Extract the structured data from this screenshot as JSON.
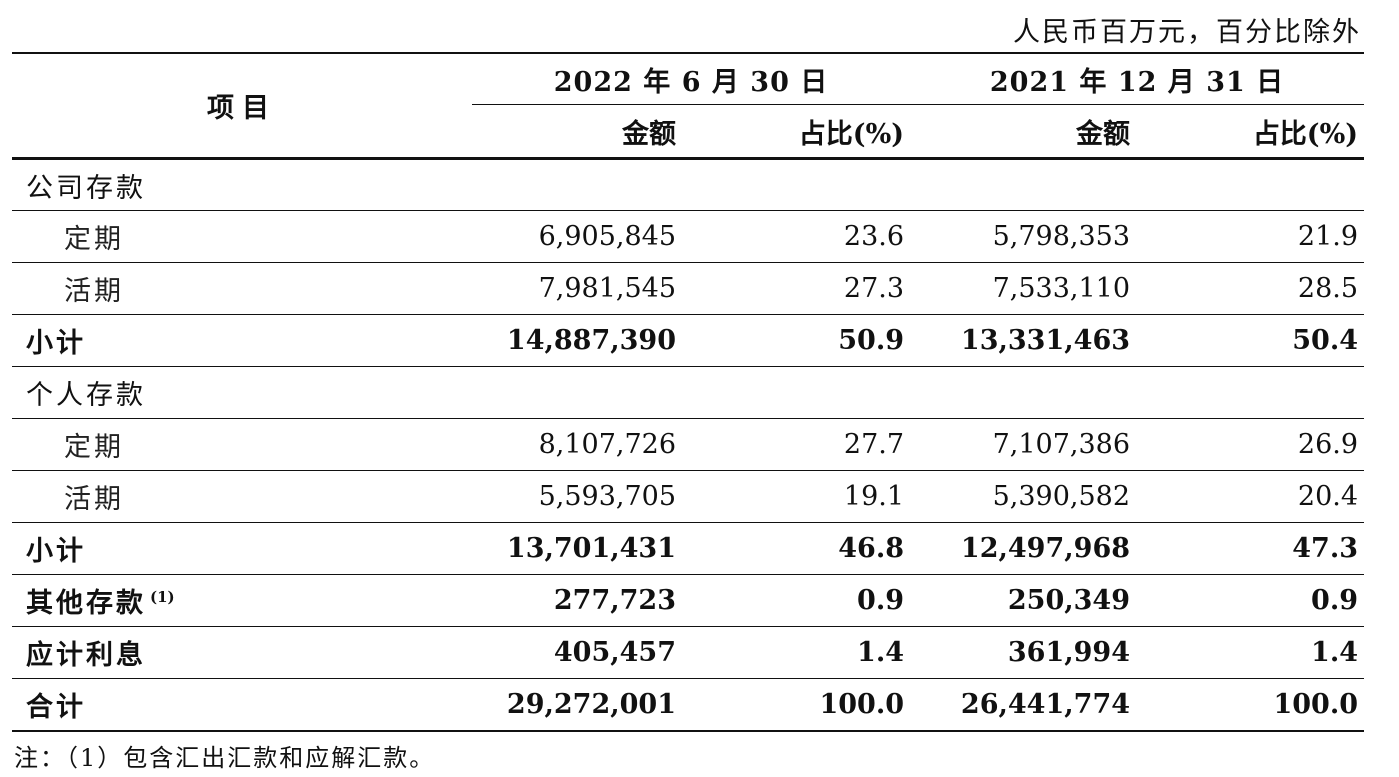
{
  "unit_note": "人民币百万元，百分比除外",
  "header": {
    "item": "项目",
    "periods": [
      {
        "label": "2022 年 6 月 30 日",
        "amount": "金额",
        "ratio": "占比(%)"
      },
      {
        "label": "2021 年 12 月 31 日",
        "amount": "金额",
        "ratio": "占比(%)"
      }
    ]
  },
  "rows": [
    {
      "label": "公司存款",
      "cells": [
        "",
        "",
        "",
        ""
      ]
    },
    {
      "label": "定期",
      "cells": [
        "6,905,845",
        "23.6",
        "5,798,353",
        "21.9"
      ]
    },
    {
      "label": "活期",
      "cells": [
        "7,981,545",
        "27.3",
        "7,533,110",
        "28.5"
      ]
    },
    {
      "label": "小计",
      "cells": [
        "14,887,390",
        "50.9",
        "13,331,463",
        "50.4"
      ]
    },
    {
      "label": "个人存款",
      "cells": [
        "",
        "",
        "",
        ""
      ]
    },
    {
      "label": "定期",
      "cells": [
        "8,107,726",
        "27.7",
        "7,107,386",
        "26.9"
      ]
    },
    {
      "label": "活期",
      "cells": [
        "5,593,705",
        "19.1",
        "5,390,582",
        "20.4"
      ]
    },
    {
      "label": "小计",
      "cells": [
        "13,701,431",
        "46.8",
        "12,497,968",
        "47.3"
      ]
    },
    {
      "label": "其他存款",
      "footnote_mark": "(1)",
      "cells": [
        "277,723",
        "0.9",
        "250,349",
        "0.9"
      ]
    },
    {
      "label": "应计利息",
      "cells": [
        "405,457",
        "1.4",
        "361,994",
        "1.4"
      ]
    },
    {
      "label": "合计",
      "cells": [
        "29,272,001",
        "100.0",
        "26,441,774",
        "100.0"
      ]
    }
  ],
  "footnote": "注：（1）包含汇出汇款和应解汇款。"
}
